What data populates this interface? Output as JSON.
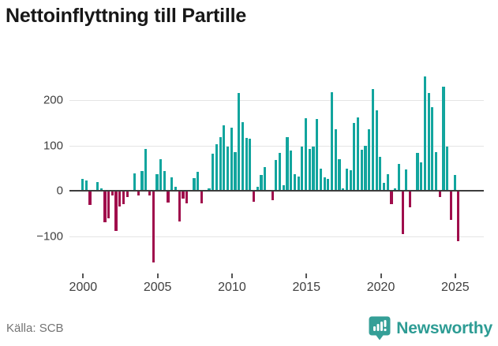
{
  "title": "Nettoinflyttning till Partille",
  "source": "Källa: SCB",
  "branding": {
    "name": "Newsworthy",
    "brand_color": "#359f97",
    "icon": "newsworthy-speech-bubble-bar-chart-icon"
  },
  "chart_data": {
    "type": "bar",
    "frequency": "quarterly",
    "start_period": "2000-Q1",
    "end_period": "2025-Q2",
    "title": "Nettoinflyttning till Partille",
    "xlabel": "",
    "ylabel": "",
    "x_tick_labels": [
      "2000",
      "2005",
      "2010",
      "2015",
      "2020",
      "2025"
    ],
    "x_tick_years": [
      2000,
      2005,
      2010,
      2015,
      2020,
      2025
    ],
    "y_tick_labels": [
      "200",
      "100",
      "0",
      "−100"
    ],
    "y_ticks": [
      200,
      100,
      0,
      -100
    ],
    "y_gridlines": [
      200,
      100,
      -100
    ],
    "ylim": [
      -175,
      270
    ],
    "grid": true,
    "legend": "none",
    "positive_color": "#12a59e",
    "negative_color": "#a00e4c",
    "values": [
      26,
      22,
      -32,
      2,
      19,
      6,
      -69,
      -60,
      -11,
      -89,
      -34,
      -29,
      -14,
      0,
      38,
      -11,
      43,
      93,
      -10,
      -158,
      37,
      70,
      43,
      -26,
      30,
      9,
      -68,
      -17,
      -27,
      0,
      28,
      41,
      -27,
      0,
      5,
      82,
      102,
      118,
      145,
      98,
      139,
      85,
      215,
      152,
      116,
      115,
      -25,
      9,
      34,
      53,
      0,
      -20,
      68,
      84,
      12,
      118,
      88,
      37,
      31,
      97,
      160,
      93,
      98,
      159,
      49,
      29,
      26,
      217,
      135,
      69,
      5,
      49,
      46,
      149,
      161,
      90,
      100,
      135,
      224,
      178,
      75,
      17,
      37,
      -29,
      5,
      59,
      -96,
      47,
      -36,
      0,
      83,
      62,
      252,
      216,
      184,
      86,
      -13,
      229,
      98,
      -65,
      34,
      -112
    ]
  }
}
